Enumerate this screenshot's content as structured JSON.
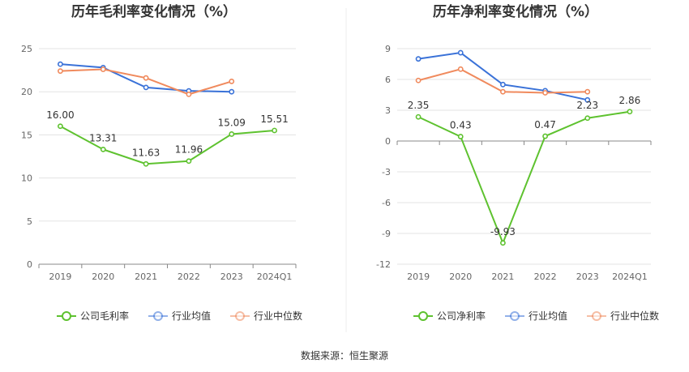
{
  "colors": {
    "company": "#5ec22f",
    "industry_avg": "#3a72d8",
    "industry_median": "#f08a5d",
    "grid": "#e3e3e3",
    "axis": "#888888",
    "divider": "#eeeeee"
  },
  "legend_icons": {
    "company": "circle-line-icon",
    "industry_avg": "circle-line-icon",
    "industry_median": "circle-line-icon"
  },
  "source": "数据来源：恒生聚源",
  "chart_data": [
    {
      "type": "line",
      "title": "历年毛利率变化情况（%）",
      "categories": [
        "2019",
        "2020",
        "2021",
        "2022",
        "2023",
        "2024Q1"
      ],
      "ylim": [
        0,
        25
      ],
      "yticks": [
        0,
        5,
        10,
        15,
        20,
        25
      ],
      "grid": true,
      "legend_position": "bottom",
      "series": [
        {
          "name": "公司毛利率",
          "values": [
            16.0,
            13.31,
            11.63,
            11.96,
            15.09,
            15.51
          ],
          "labels": [
            "16.00",
            "13.31",
            "11.63",
            "11.96",
            "15.09",
            "15.51"
          ]
        },
        {
          "name": "行业均值",
          "values": [
            23.2,
            22.8,
            20.5,
            20.1,
            20.0,
            null
          ]
        },
        {
          "name": "行业中位数",
          "values": [
            22.4,
            22.6,
            21.6,
            19.7,
            21.2,
            null
          ]
        }
      ]
    },
    {
      "type": "line",
      "title": "历年净利率变化情况（%）",
      "categories": [
        "2019",
        "2020",
        "2021",
        "2022",
        "2023",
        "2024Q1"
      ],
      "ylim": [
        -12,
        9
      ],
      "yticks": [
        -12,
        -9,
        -6,
        -3,
        0,
        3,
        6,
        9
      ],
      "grid": true,
      "legend_position": "bottom",
      "series": [
        {
          "name": "公司净利率",
          "values": [
            2.35,
            0.43,
            -9.93,
            0.47,
            2.23,
            2.86
          ],
          "labels": [
            "2.35",
            "0.43",
            "-9.93",
            "0.47",
            "2.23",
            "2.86"
          ]
        },
        {
          "name": "行业均值",
          "values": [
            8.0,
            8.6,
            5.5,
            4.9,
            4.0,
            null
          ]
        },
        {
          "name": "行业中位数",
          "values": [
            5.9,
            7.0,
            4.8,
            4.7,
            4.8,
            null
          ]
        }
      ]
    }
  ]
}
